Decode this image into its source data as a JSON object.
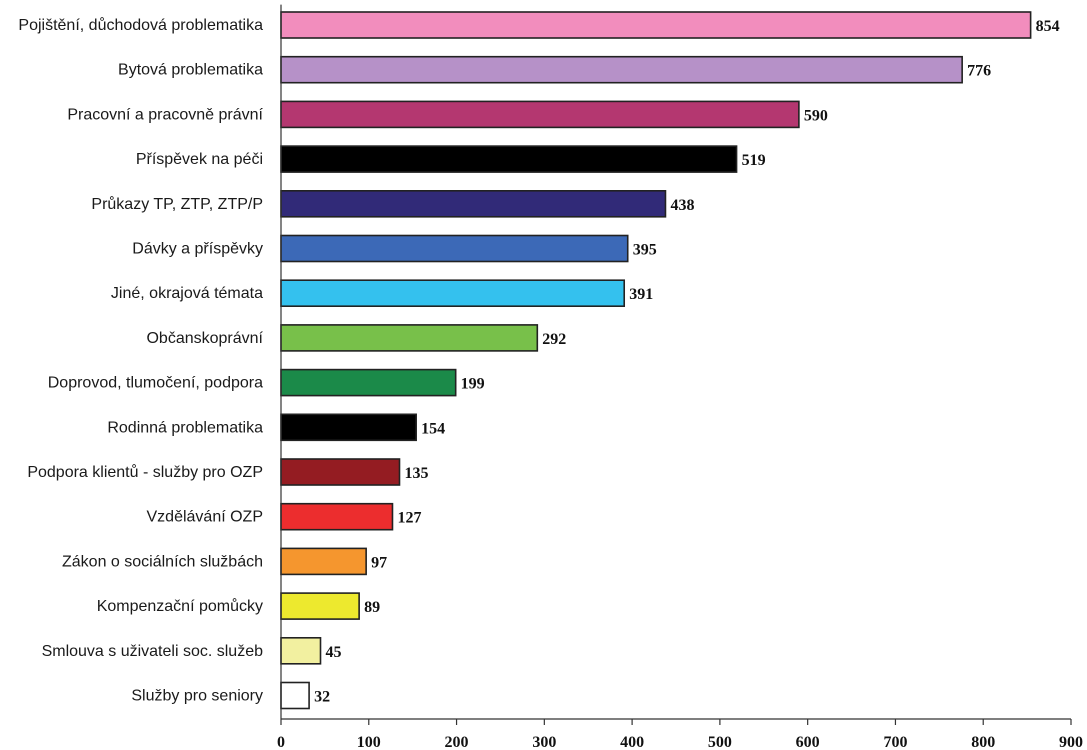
{
  "chart_data": {
    "type": "bar",
    "orientation": "horizontal",
    "title": "",
    "xlabel": "",
    "ylabel": "",
    "xlim": [
      0,
      900
    ],
    "ticks": [
      0,
      100,
      200,
      300,
      400,
      500,
      600,
      700,
      800,
      900
    ],
    "grid": false,
    "categories": [
      "Pojištění, důchodová problematika",
      "Bytová problematika",
      "Pracovní a pracovně právní",
      "Příspěvek na péči",
      "Průkazy TP, ZTP, ZTP/P",
      "Dávky a příspěvky",
      "Jiné, okrajová témata",
      "Občanskoprávní",
      "Doprovod, tlumočení, podpora",
      "Rodinná problematika",
      "Podpora klientů - služby pro OZP",
      "Vzdělávání OZP",
      "Zákon o sociálních službách",
      "Kompenzační pomůcky",
      "Smlouva s uživateli soc. služeb",
      "Služby pro seniory"
    ],
    "values": [
      854,
      776,
      590,
      519,
      438,
      395,
      391,
      292,
      199,
      154,
      135,
      127,
      97,
      89,
      45,
      32
    ],
    "colors": [
      "#f28dbd",
      "#b691c8",
      "#b43770",
      "#000000",
      "#312a78",
      "#3c69b7",
      "#34c1ee",
      "#78c04a",
      "#1b8a49",
      "#000000",
      "#941c22",
      "#ec2d2e",
      "#f5962e",
      "#ede92e",
      "#f2f0a0",
      "#ffffff"
    ]
  }
}
